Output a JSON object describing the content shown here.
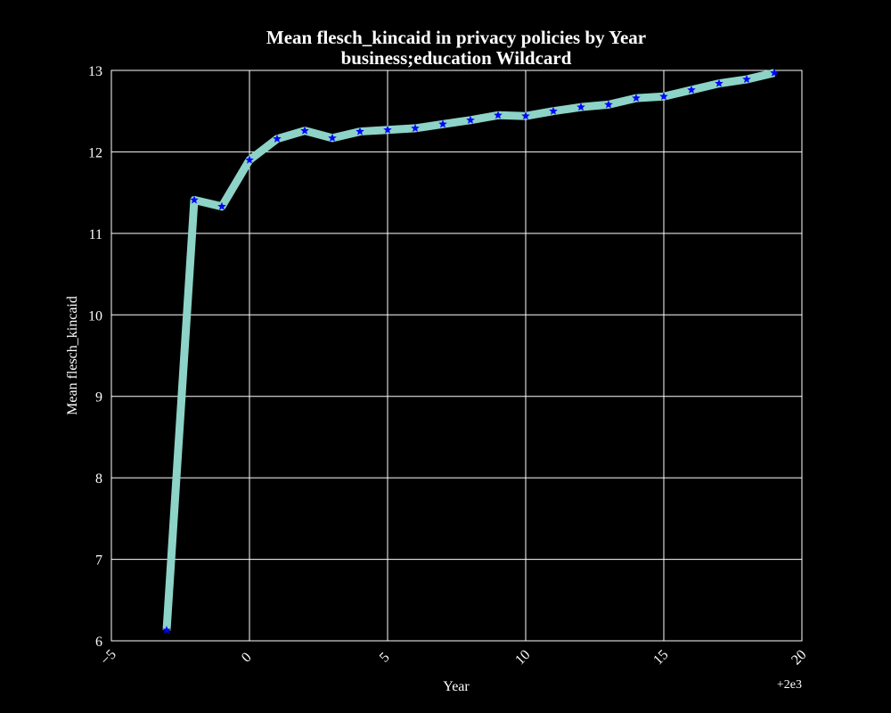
{
  "chart_data": {
    "type": "line",
    "title": "Mean flesch_kincaid in privacy policies by Year",
    "subtitle": "business;education Wildcard",
    "xlabel": "Year",
    "ylabel": "Mean flesch_kincaid",
    "x_offset_label": "+2e3",
    "xlim": [
      -5,
      20
    ],
    "ylim": [
      6,
      13
    ],
    "x_ticks": [
      -5,
      0,
      5,
      10,
      15,
      20
    ],
    "y_ticks": [
      6,
      7,
      8,
      9,
      10,
      11,
      12,
      13
    ],
    "x_tick_labels": [
      "−5",
      "0",
      "5",
      "10",
      "15",
      "20"
    ],
    "y_tick_labels": [
      "6",
      "7",
      "8",
      "9",
      "10",
      "11",
      "12",
      "13"
    ],
    "grid": true,
    "line_color": "#8dd3c7",
    "marker_color": "#0000ff",
    "marker": "star",
    "series": [
      {
        "x": [
          -3,
          -2,
          -1,
          0,
          1,
          2,
          3,
          4,
          5,
          6,
          7,
          8,
          9,
          10,
          11,
          12,
          13,
          14,
          15,
          16,
          17,
          18,
          19
        ],
        "values": [
          6.13,
          11.41,
          11.33,
          11.9,
          12.16,
          12.26,
          12.17,
          12.25,
          12.27,
          12.29,
          12.34,
          12.39,
          12.45,
          12.44,
          12.5,
          12.55,
          12.58,
          12.66,
          12.68,
          12.76,
          12.84,
          12.89,
          12.97
        ]
      }
    ]
  }
}
